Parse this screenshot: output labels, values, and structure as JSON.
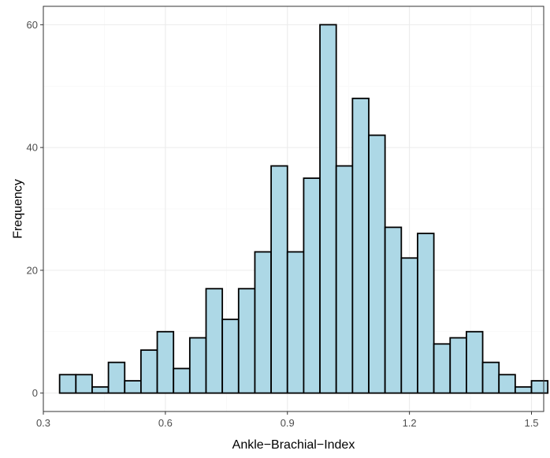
{
  "chart_data": {
    "type": "bar",
    "subtype": "histogram",
    "xlabel": "Ankle−Brachial−Index",
    "ylabel": "Frequency",
    "xlim": [
      0.3,
      1.53
    ],
    "ylim": [
      -3,
      63
    ],
    "x_ticks": [
      0.3,
      0.6,
      0.9,
      1.2,
      1.5
    ],
    "x_tick_labels": [
      "0.3",
      "0.6",
      "0.9",
      "1.2",
      "1.5"
    ],
    "y_ticks": [
      0,
      20,
      40,
      60
    ],
    "y_tick_labels": [
      "0",
      "20",
      "40",
      "60"
    ],
    "grid": true,
    "fill_color": "#add8e6",
    "border_color": "#000000",
    "bins": [
      {
        "x0": 0.34,
        "x1": 0.38,
        "count": 3
      },
      {
        "x0": 0.38,
        "x1": 0.42,
        "count": 3
      },
      {
        "x0": 0.42,
        "x1": 0.46,
        "count": 1
      },
      {
        "x0": 0.46,
        "x1": 0.5,
        "count": 5
      },
      {
        "x0": 0.5,
        "x1": 0.54,
        "count": 2
      },
      {
        "x0": 0.54,
        "x1": 0.58,
        "count": 7
      },
      {
        "x0": 0.58,
        "x1": 0.62,
        "count": 10
      },
      {
        "x0": 0.62,
        "x1": 0.66,
        "count": 4
      },
      {
        "x0": 0.66,
        "x1": 0.7,
        "count": 9
      },
      {
        "x0": 0.7,
        "x1": 0.74,
        "count": 17
      },
      {
        "x0": 0.74,
        "x1": 0.78,
        "count": 12
      },
      {
        "x0": 0.78,
        "x1": 0.82,
        "count": 17
      },
      {
        "x0": 0.82,
        "x1": 0.86,
        "count": 23
      },
      {
        "x0": 0.86,
        "x1": 0.9,
        "count": 37
      },
      {
        "x0": 0.9,
        "x1": 0.94,
        "count": 23
      },
      {
        "x0": 0.94,
        "x1": 0.98,
        "count": 35
      },
      {
        "x0": 0.98,
        "x1": 1.02,
        "count": 60
      },
      {
        "x0": 1.02,
        "x1": 1.06,
        "count": 37
      },
      {
        "x0": 1.06,
        "x1": 1.1,
        "count": 48
      },
      {
        "x0": 1.1,
        "x1": 1.14,
        "count": 42
      },
      {
        "x0": 1.14,
        "x1": 1.18,
        "count": 27
      },
      {
        "x0": 1.18,
        "x1": 1.22,
        "count": 22
      },
      {
        "x0": 1.22,
        "x1": 1.26,
        "count": 26
      },
      {
        "x0": 1.26,
        "x1": 1.3,
        "count": 8
      },
      {
        "x0": 1.3,
        "x1": 1.34,
        "count": 9
      },
      {
        "x0": 1.34,
        "x1": 1.38,
        "count": 10
      },
      {
        "x0": 1.38,
        "x1": 1.42,
        "count": 5
      },
      {
        "x0": 1.42,
        "x1": 1.46,
        "count": 3
      },
      {
        "x0": 1.46,
        "x1": 1.5,
        "count": 1
      },
      {
        "x0": 1.5,
        "x1": 1.54,
        "count": 2
      }
    ]
  }
}
